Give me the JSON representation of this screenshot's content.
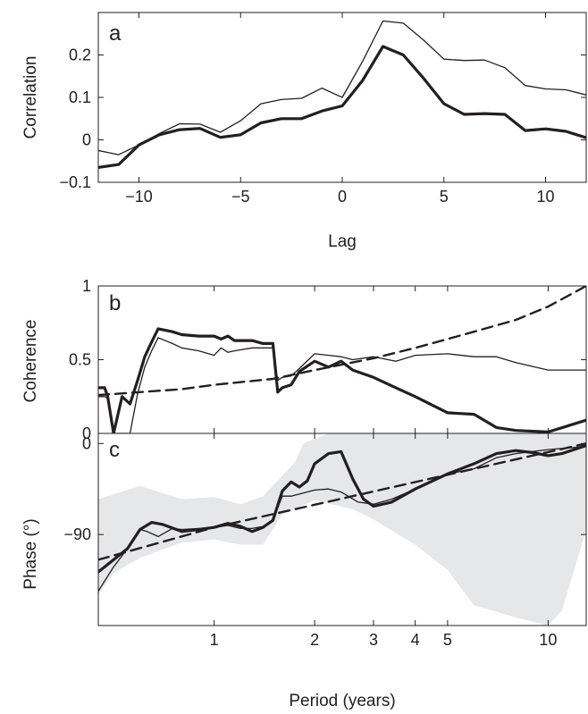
{
  "chart_data": [
    {
      "panel": "a",
      "type": "line",
      "xlabel": "Lag",
      "ylabel": "Correlation",
      "xlim": [
        -12,
        12
      ],
      "ylim": [
        -0.1,
        0.3
      ],
      "xticks": [
        -10,
        -5,
        0,
        5,
        10
      ],
      "xtick_labels": [
        "−10",
        "−5",
        "0",
        "5",
        "10"
      ],
      "yticks": [
        -0.1,
        0,
        0.1,
        0.2
      ],
      "ytick_labels": [
        "−0.1",
        "0",
        "0.1",
        "0.2"
      ],
      "x": [
        -12,
        -11,
        -10,
        -9,
        -8,
        -7,
        -6,
        -5,
        -4,
        -3,
        -2,
        -1,
        0,
        1,
        2,
        3,
        4,
        5,
        6,
        7,
        8,
        9,
        10,
        11,
        12
      ],
      "series": [
        {
          "style": "thick",
          "color": "#231f20",
          "values": [
            -0.065,
            -0.058,
            -0.012,
            0.012,
            0.024,
            0.027,
            0.006,
            0.012,
            0.04,
            0.05,
            0.05,
            0.068,
            0.08,
            0.14,
            0.22,
            0.2,
            0.145,
            0.085,
            0.06,
            0.062,
            0.06,
            0.022,
            0.026,
            0.02,
            0.005
          ]
        },
        {
          "style": "thin",
          "color": "#231f20",
          "values": [
            -0.025,
            -0.035,
            -0.012,
            0.015,
            0.038,
            0.037,
            0.018,
            0.045,
            0.085,
            0.095,
            0.098,
            0.122,
            0.1,
            0.185,
            0.28,
            0.275,
            0.235,
            0.19,
            0.187,
            0.188,
            0.17,
            0.128,
            0.12,
            0.118,
            0.106
          ]
        }
      ]
    },
    {
      "panel": "b",
      "type": "line",
      "xlabel": "",
      "ylabel": "Coherence",
      "xscale": "log",
      "xlim": [
        0.45,
        13
      ],
      "ylim": [
        0,
        1
      ],
      "yticks": [
        0,
        0.5,
        1
      ],
      "ytick_labels": [
        "0",
        "0.5",
        "1"
      ],
      "series": [
        {
          "style": "thick",
          "color": "#231f20",
          "points": [
            [
              0.45,
              0.31
            ],
            [
              0.47,
              0.31
            ],
            [
              0.48,
              0.25
            ],
            [
              0.5,
              0.0
            ],
            [
              0.53,
              0.25
            ],
            [
              0.56,
              0.2
            ],
            [
              0.59,
              0.36
            ],
            [
              0.62,
              0.52
            ],
            [
              0.65,
              0.62
            ],
            [
              0.68,
              0.71
            ],
            [
              0.75,
              0.69
            ],
            [
              0.8,
              0.67
            ],
            [
              0.9,
              0.66
            ],
            [
              1.0,
              0.66
            ],
            [
              1.05,
              0.64
            ],
            [
              1.1,
              0.66
            ],
            [
              1.15,
              0.63
            ],
            [
              1.3,
              0.63
            ],
            [
              1.4,
              0.61
            ],
            [
              1.5,
              0.61
            ],
            [
              1.55,
              0.28
            ],
            [
              1.6,
              0.31
            ],
            [
              1.7,
              0.33
            ],
            [
              1.8,
              0.42
            ],
            [
              2.0,
              0.49
            ],
            [
              2.2,
              0.45
            ],
            [
              2.4,
              0.49
            ],
            [
              2.6,
              0.43
            ],
            [
              3.0,
              0.38
            ],
            [
              3.5,
              0.31
            ],
            [
              4.0,
              0.25
            ],
            [
              5.0,
              0.14
            ],
            [
              6.0,
              0.13
            ],
            [
              7.0,
              0.04
            ],
            [
              8.0,
              0.02
            ],
            [
              10.0,
              0.01
            ],
            [
              13.0,
              0.09
            ]
          ]
        },
        {
          "style": "thin",
          "color": "#231f20",
          "points": [
            [
              0.45,
              0.25
            ],
            [
              0.47,
              0.25
            ],
            [
              0.48,
              0.24
            ],
            [
              0.5,
              0.0
            ],
            [
              0.53,
              0.0
            ],
            [
              0.56,
              0.0
            ],
            [
              0.59,
              0.27
            ],
            [
              0.62,
              0.45
            ],
            [
              0.65,
              0.56
            ],
            [
              0.68,
              0.65
            ],
            [
              0.75,
              0.61
            ],
            [
              0.8,
              0.58
            ],
            [
              0.9,
              0.56
            ],
            [
              1.0,
              0.53
            ],
            [
              1.05,
              0.58
            ],
            [
              1.1,
              0.55
            ],
            [
              1.15,
              0.56
            ],
            [
              1.3,
              0.58
            ],
            [
              1.4,
              0.58
            ],
            [
              1.5,
              0.58
            ],
            [
              1.55,
              0.36
            ],
            [
              1.6,
              0.38
            ],
            [
              1.7,
              0.39
            ],
            [
              1.8,
              0.44
            ],
            [
              2.0,
              0.54
            ],
            [
              2.2,
              0.53
            ],
            [
              2.4,
              0.52
            ],
            [
              2.6,
              0.5
            ],
            [
              3.0,
              0.52
            ],
            [
              3.5,
              0.49
            ],
            [
              4.0,
              0.53
            ],
            [
              5.0,
              0.54
            ],
            [
              6.0,
              0.52
            ],
            [
              7.0,
              0.52
            ],
            [
              8.0,
              0.48
            ],
            [
              10.0,
              0.43
            ],
            [
              13.0,
              0.43
            ]
          ]
        },
        {
          "style": "dashed",
          "color": "#231f20",
          "points": [
            [
              0.45,
              0.26
            ],
            [
              0.6,
              0.28
            ],
            [
              0.8,
              0.3
            ],
            [
              1.0,
              0.33
            ],
            [
              1.5,
              0.37
            ],
            [
              2.0,
              0.43
            ],
            [
              3.0,
              0.51
            ],
            [
              4.0,
              0.58
            ],
            [
              5.0,
              0.64
            ],
            [
              6.0,
              0.69
            ],
            [
              8.0,
              0.77
            ],
            [
              10.0,
              0.86
            ],
            [
              13.0,
              1.0
            ]
          ]
        }
      ]
    },
    {
      "panel": "c",
      "type": "line",
      "xlabel": "Period (years)",
      "ylabel": "Phase (°)",
      "xscale": "log",
      "xlim": [
        0.45,
        13
      ],
      "ylim": [
        -180,
        10
      ],
      "xticks": [
        1,
        2,
        3,
        4,
        5,
        10
      ],
      "xtick_labels": [
        "1",
        "2",
        "3",
        "4",
        "5",
        "10"
      ],
      "yticks": [
        -90,
        0
      ],
      "ytick_labels": [
        "−90",
        "0"
      ],
      "band": {
        "color": "#e6e7e8",
        "upper": [
          [
            0.45,
            -55
          ],
          [
            0.6,
            -42
          ],
          [
            0.8,
            -55
          ],
          [
            1.0,
            -53
          ],
          [
            1.2,
            -60
          ],
          [
            1.4,
            -52
          ],
          [
            1.6,
            -32
          ],
          [
            1.75,
            -18
          ],
          [
            1.85,
            0
          ],
          [
            2.2,
            10
          ],
          [
            13.0,
            10
          ]
        ],
        "lower": [
          [
            0.45,
            -150
          ],
          [
            0.5,
            -128
          ],
          [
            0.6,
            -113
          ],
          [
            0.8,
            -98
          ],
          [
            1.0,
            -95
          ],
          [
            1.2,
            -100
          ],
          [
            1.4,
            -100
          ],
          [
            1.6,
            -70
          ],
          [
            2.0,
            -56
          ],
          [
            2.6,
            -65
          ],
          [
            3.0,
            -75
          ],
          [
            4.0,
            -100
          ],
          [
            5.0,
            -125
          ],
          [
            6.0,
            -160
          ],
          [
            8.0,
            -172
          ],
          [
            10.0,
            -180
          ],
          [
            11.0,
            -165
          ],
          [
            13.0,
            -85
          ]
        ]
      },
      "series": [
        {
          "style": "thick",
          "color": "#231f20",
          "points": [
            [
              0.45,
              -127
            ],
            [
              0.5,
              -115
            ],
            [
              0.55,
              -104
            ],
            [
              0.6,
              -85
            ],
            [
              0.65,
              -78
            ],
            [
              0.7,
              -80
            ],
            [
              0.8,
              -87
            ],
            [
              0.9,
              -85
            ],
            [
              1.0,
              -83
            ],
            [
              1.1,
              -79
            ],
            [
              1.2,
              -82
            ],
            [
              1.3,
              -87
            ],
            [
              1.4,
              -83
            ],
            [
              1.5,
              -76
            ],
            [
              1.6,
              -47
            ],
            [
              1.7,
              -38
            ],
            [
              1.8,
              -43
            ],
            [
              1.9,
              -37
            ],
            [
              2.0,
              -20
            ],
            [
              2.2,
              -10
            ],
            [
              2.4,
              -8
            ],
            [
              2.6,
              -35
            ],
            [
              2.8,
              -55
            ],
            [
              3.0,
              -62
            ],
            [
              3.4,
              -58
            ],
            [
              4.0,
              -45
            ],
            [
              5.0,
              -30
            ],
            [
              6.0,
              -20
            ],
            [
              7.0,
              -10
            ],
            [
              8.0,
              -7
            ],
            [
              9.0,
              -9
            ],
            [
              10.0,
              -12
            ],
            [
              11.0,
              -10
            ],
            [
              13.0,
              -2
            ]
          ]
        },
        {
          "style": "thin",
          "color": "#231f20",
          "points": [
            [
              0.45,
              -146
            ],
            [
              0.5,
              -122
            ],
            [
              0.55,
              -104
            ],
            [
              0.6,
              -85
            ],
            [
              0.63,
              -87
            ],
            [
              0.68,
              -92
            ],
            [
              0.75,
              -84
            ],
            [
              0.8,
              -85
            ],
            [
              0.9,
              -84
            ],
            [
              1.0,
              -83
            ],
            [
              1.1,
              -81
            ],
            [
              1.2,
              -84
            ],
            [
              1.3,
              -84
            ],
            [
              1.4,
              -82
            ],
            [
              1.5,
              -76
            ],
            [
              1.6,
              -52
            ],
            [
              1.7,
              -52
            ],
            [
              1.8,
              -50
            ],
            [
              2.0,
              -46
            ],
            [
              2.2,
              -45
            ],
            [
              2.4,
              -48
            ],
            [
              2.7,
              -58
            ],
            [
              3.0,
              -60
            ],
            [
              3.4,
              -55
            ],
            [
              4.0,
              -45
            ],
            [
              5.0,
              -30
            ],
            [
              6.0,
              -25
            ],
            [
              7.0,
              -14
            ],
            [
              8.0,
              -10
            ],
            [
              10.0,
              -6
            ],
            [
              13.0,
              -3
            ]
          ]
        },
        {
          "style": "dashed",
          "color": "#231f20",
          "points": [
            [
              0.45,
              -115
            ],
            [
              1.0,
              -83
            ],
            [
              13.0,
              0
            ]
          ]
        }
      ]
    }
  ],
  "panel_labels": {
    "a": "a",
    "b": "b",
    "c": "c"
  }
}
